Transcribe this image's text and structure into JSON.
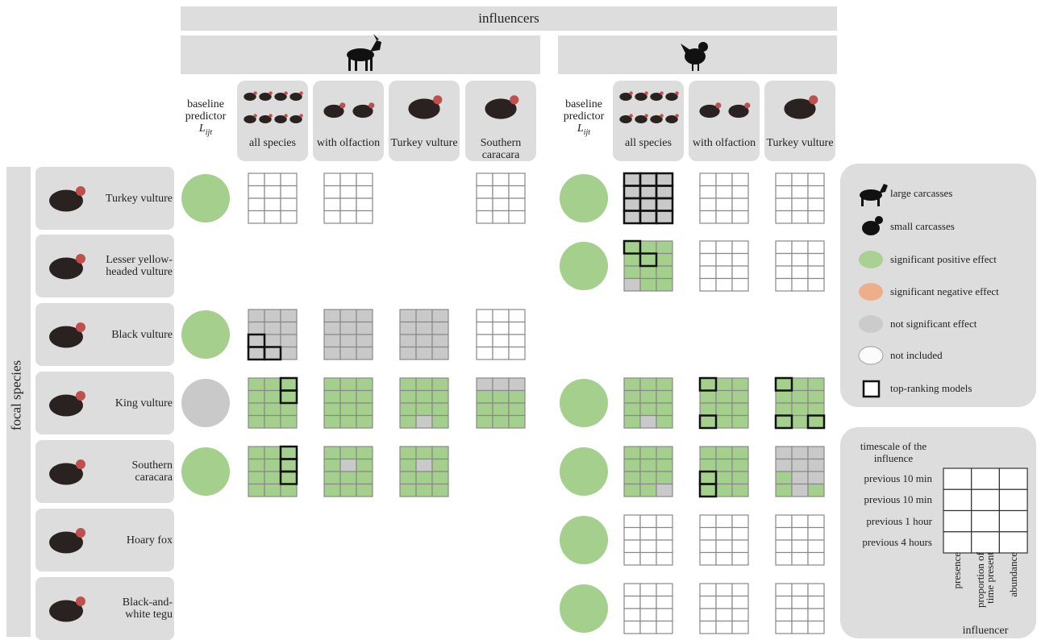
{
  "header": {
    "title": "influencers"
  },
  "baseline": {
    "label": "baseline predictor",
    "symbol": "L",
    "subscript": "ijt"
  },
  "groups": [
    {
      "columns": [
        "all species",
        "with olfaction",
        "Turkey vulture",
        "Southern caracara"
      ]
    },
    {
      "columns": [
        "all species",
        "with olfaction",
        "Turkey vulture"
      ]
    }
  ],
  "rows": {
    "title": "focal species",
    "items": [
      "Turkey vulture",
      "Lesser yellow-headed vulture",
      "Black vulture",
      "King vulture",
      "Southern caracara",
      "Hoary fox",
      "Black-and-white tegu"
    ]
  },
  "legend": {
    "items": [
      "large carcasses",
      "small carcasses",
      "significant positive effect",
      "significant negative effect",
      "not significant effect",
      "not included",
      "top-ranking models"
    ]
  },
  "timescale": {
    "title": "timescale of the influence",
    "rows": [
      "previous 10 min",
      "previous 10 min",
      "previous 1 hour",
      "previous 4 hours"
    ],
    "columns": [
      "presence",
      "proportion of time present",
      "abundance"
    ],
    "axis": "influencer"
  }
}
